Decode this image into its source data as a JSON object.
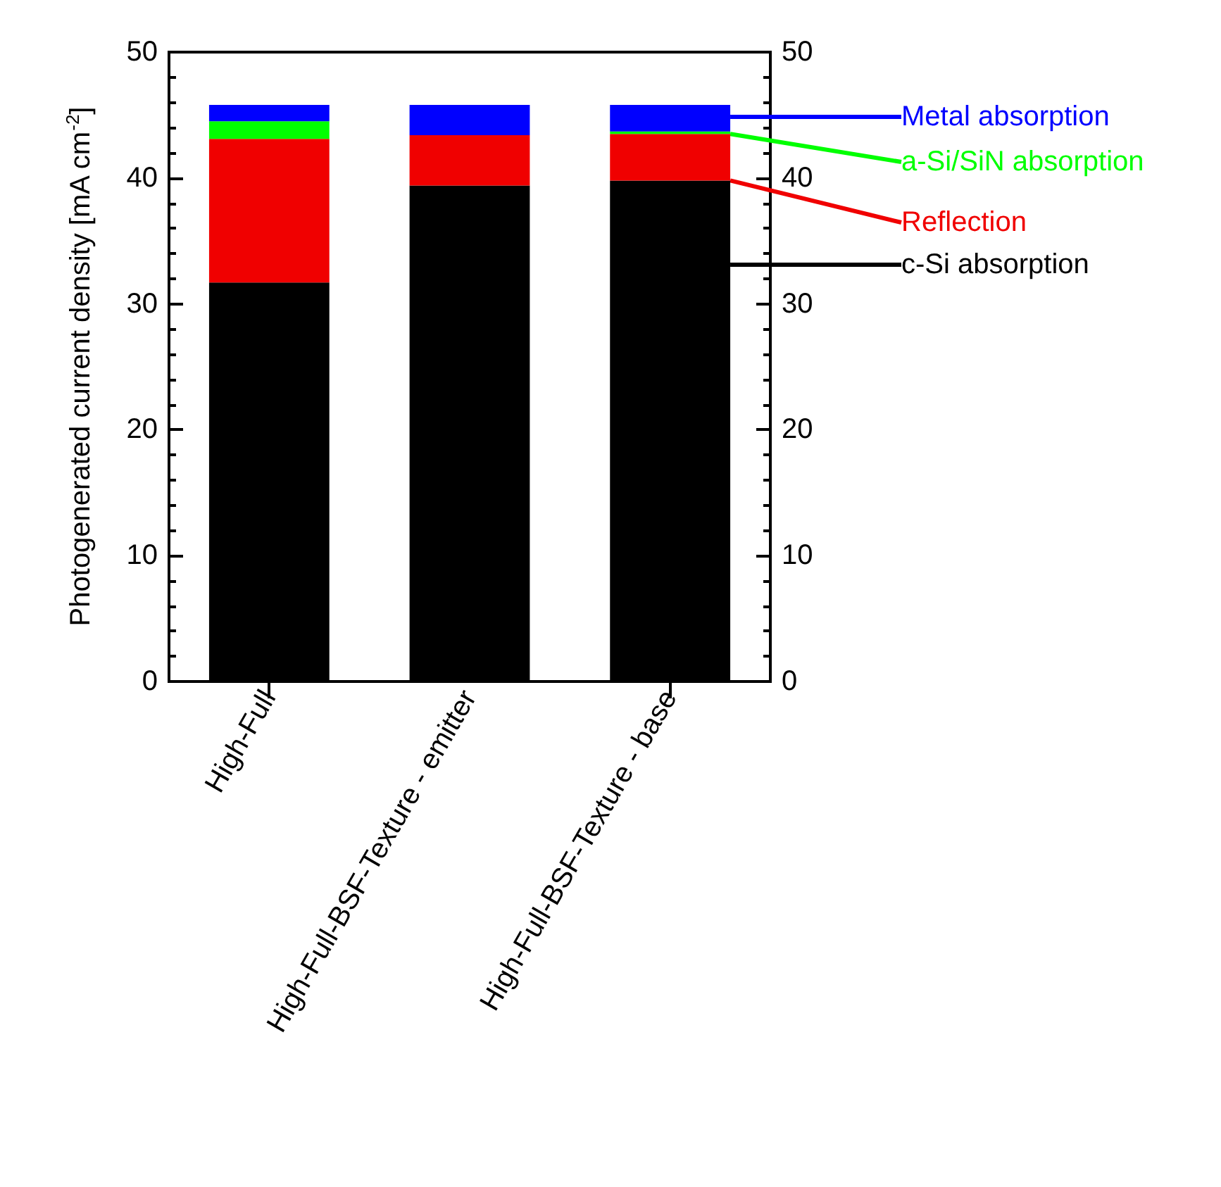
{
  "chart_data": {
    "type": "bar",
    "stacked": true,
    "ylabel": "Photogenerated current density [mA cm$^{-2}$]",
    "categories": [
      "High-Full",
      "High-Full-BSF-Texture - emitter",
      "High-Full-BSF-Texture - base"
    ],
    "series": [
      {
        "name": "c-Si absorption",
        "color": "#000000",
        "values": [
          31.7,
          39.4,
          39.8
        ]
      },
      {
        "name": "Reflection",
        "color": "#f00000",
        "values": [
          11.4,
          4.0,
          3.7
        ]
      },
      {
        "name": "a-Si/SiN absorption",
        "color": "#00ff00",
        "values": [
          1.4,
          0,
          0.2
        ]
      },
      {
        "name": "Metal absorption",
        "color": "#0000ff",
        "values": [
          1.3,
          2.4,
          2.1
        ]
      }
    ],
    "ylim": [
      0,
      50
    ],
    "yticks": [
      0,
      10,
      20,
      30,
      40,
      50
    ],
    "y2lim": [
      0,
      50
    ],
    "y2ticks": [
      0,
      10,
      20,
      30,
      40,
      50
    ],
    "grid": false,
    "legend": false
  }
}
